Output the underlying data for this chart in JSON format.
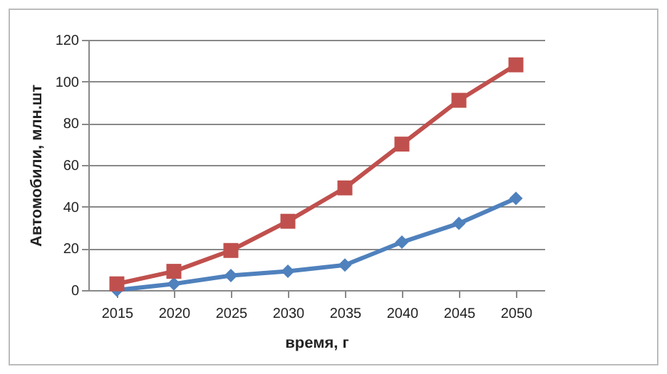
{
  "chart_data": {
    "type": "line",
    "xlabel": "время, г",
    "ylabel": "Автомобили, млн.шт",
    "categories": [
      "2015",
      "2020",
      "2025",
      "2030",
      "2035",
      "2040",
      "2045",
      "2050"
    ],
    "series": [
      {
        "color": "#4f81bd",
        "marker": "diamond",
        "values": [
          0,
          3,
          7,
          9,
          12,
          23,
          32,
          44
        ]
      },
      {
        "color": "#c0504d",
        "marker": "square",
        "values": [
          3,
          9,
          19,
          33,
          49,
          70,
          91,
          108
        ]
      }
    ],
    "ylim": [
      0,
      120
    ],
    "yticks": [
      0,
      20,
      40,
      60,
      80,
      100,
      120
    ],
    "grid": "y",
    "line_style": "solid"
  }
}
